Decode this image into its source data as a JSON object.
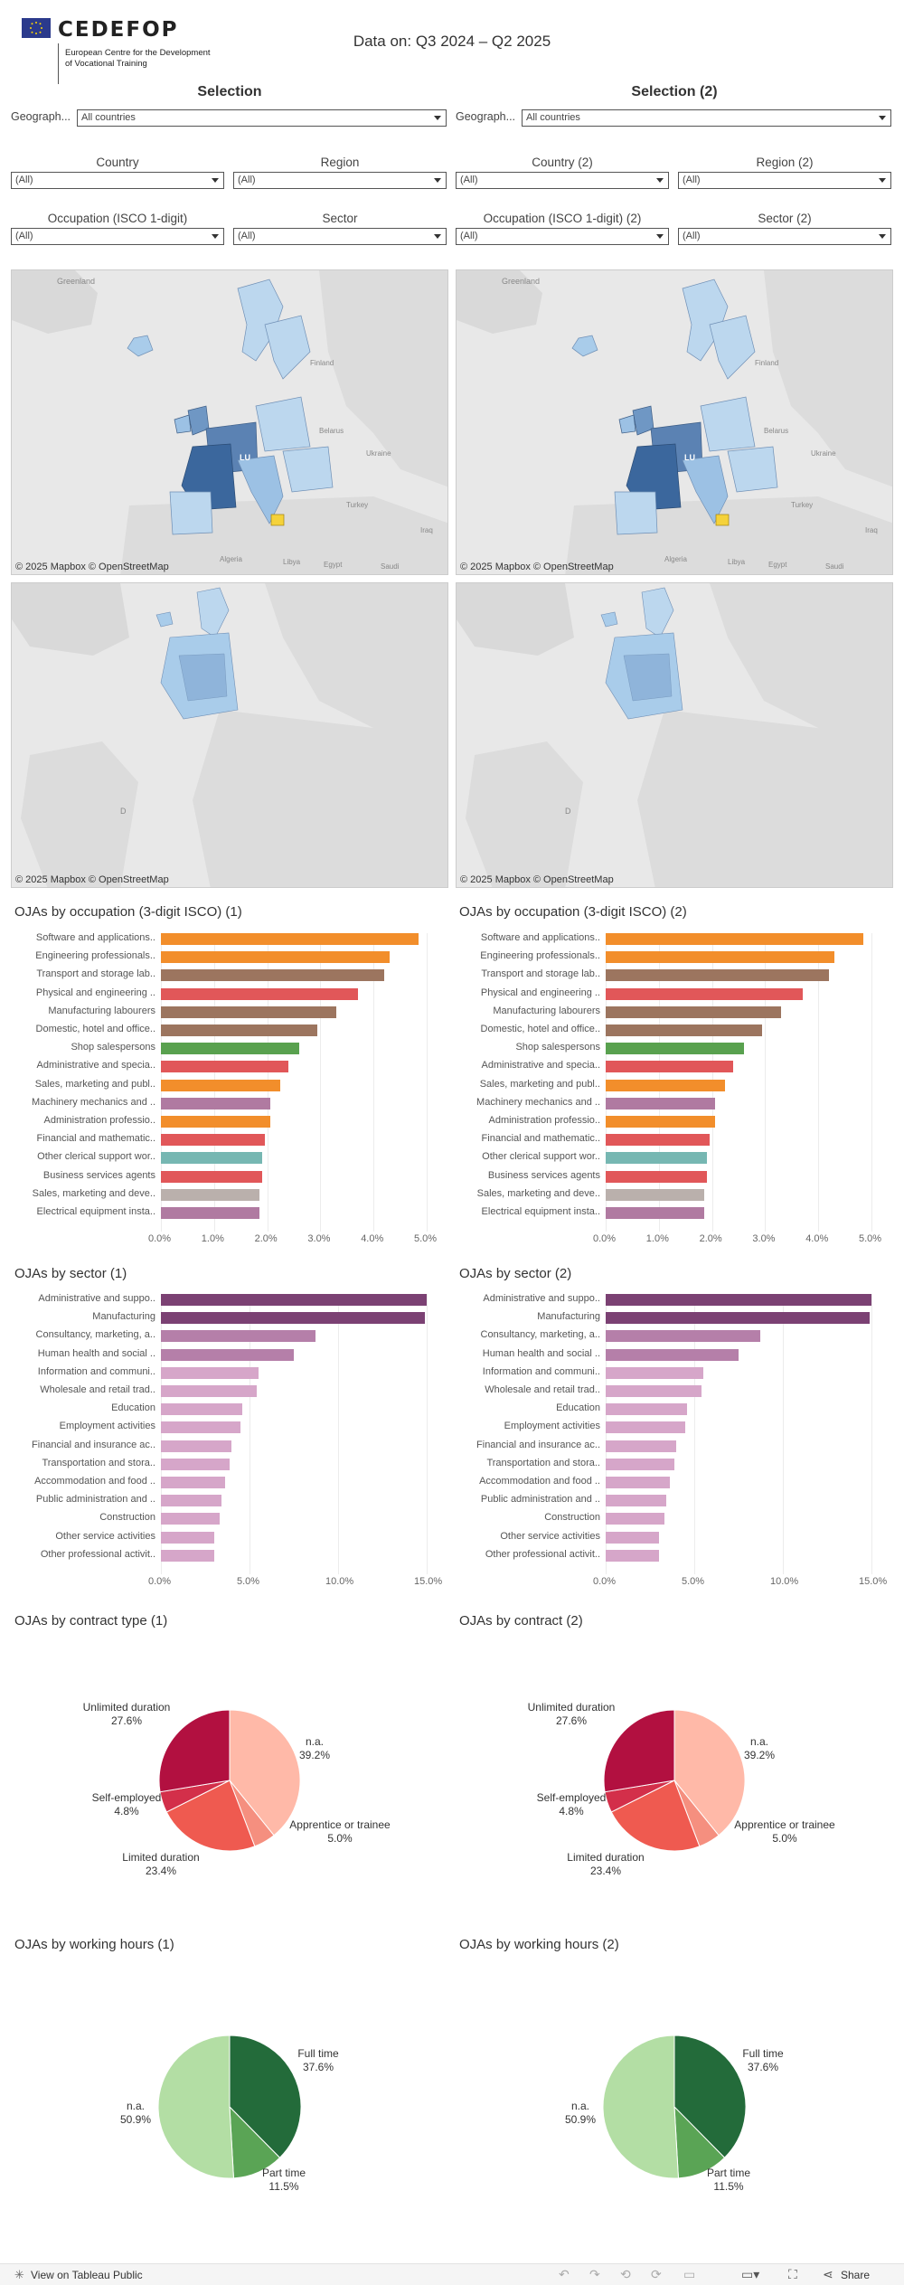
{
  "header": {
    "logo_text": "CEDEFOP",
    "logo_sub_1": "European Centre for the Development",
    "logo_sub_2": "of Vocational Training",
    "data_on": "Data on: Q3 2024 – Q2 2025"
  },
  "panels": [
    {
      "selection_title": "Selection",
      "geo_label": "Geograph...",
      "geo_value": "All countries",
      "country_label": "Country",
      "country_value": "(All)",
      "region_label": "Region",
      "region_value": "(All)",
      "occupation_label": "Occupation (ISCO 1-digit)",
      "occupation_value": "(All)",
      "sector_label": "Sector",
      "sector_value": "(All)",
      "occ_title": "OJAs by occupation (3-digit ISCO) (1)",
      "sector_title": "OJAs by sector (1)",
      "contract_title": "OJAs by contract type (1)",
      "hours_title": "OJAs by working hours (1)"
    },
    {
      "selection_title": "Selection (2)",
      "geo_label": "Geograph...",
      "geo_value": "All countries",
      "country_label": "Country (2)",
      "country_value": "(All)",
      "region_label": "Region (2)",
      "region_value": "(All)",
      "occupation_label": "Occupation (ISCO 1-digit) (2)",
      "occupation_value": "(All)",
      "sector_label": "Sector (2)",
      "sector_value": "(All)",
      "occ_title": "OJAs by occupation (3-digit ISCO) (2)",
      "sector_title": "OJAs by sector (2)",
      "contract_title": "OJAs by contract (2)",
      "hours_title": "OJAs by working hours (2)"
    }
  ],
  "maps": {
    "attribution": "© 2025 Mapbox  © OpenStreetMap",
    "labels": {
      "greenland": "Greenland",
      "finland": "Finland",
      "belarus": "Belarus",
      "ukraine": "Ukraine",
      "turkey": "Turkey",
      "iraq": "Iraq",
      "algeria": "Algeria",
      "libya": "Libya",
      "egypt": "Egypt",
      "saudi": "Saudi",
      "lu": "LU"
    }
  },
  "colors": {
    "orange": "#f28e2b",
    "brown": "#9c755f",
    "red": "#e15759",
    "green": "#59a14f",
    "purple": "#b07aa1",
    "teal": "#76b7b2",
    "grey": "#bab0ac",
    "sector_dark": "#7b4173",
    "sector_mid": "#b57fa9",
    "sector_light": "#d6a6c9"
  },
  "chart_data": [
    {
      "id": "occupation",
      "type": "bar",
      "orientation": "horizontal",
      "categories": [
        "Software and applications..",
        "Engineering professionals..",
        "Transport and storage lab..",
        "Physical and engineering ..",
        "Manufacturing labourers",
        "Domestic, hotel and office..",
        "Shop salespersons",
        "Administrative and specia..",
        "Sales, marketing and publ..",
        "Machinery mechanics and ..",
        "Administration professio..",
        "Financial and mathematic..",
        "Other clerical support wor..",
        "Business services agents",
        "Sales, marketing and deve..",
        "Electrical equipment insta.."
      ],
      "values": [
        4.85,
        4.3,
        4.2,
        3.7,
        3.3,
        2.95,
        2.6,
        2.4,
        2.25,
        2.05,
        2.05,
        1.95,
        1.9,
        1.9,
        1.85,
        1.85
      ],
      "bar_colors": [
        "orange",
        "orange",
        "brown",
        "red",
        "brown",
        "brown",
        "green",
        "red",
        "orange",
        "purple",
        "orange",
        "red",
        "teal",
        "red",
        "grey",
        "purple"
      ],
      "x_ticks": [
        "0.0%",
        "1.0%",
        "2.0%",
        "3.0%",
        "4.0%",
        "5.0%"
      ],
      "xlim": [
        0,
        5
      ]
    },
    {
      "id": "sector",
      "type": "bar",
      "orientation": "horizontal",
      "categories": [
        "Administrative and suppo..",
        "Manufacturing",
        "Consultancy, marketing, a..",
        "Human health and social ..",
        "Information and communi..",
        "Wholesale and retail trad..",
        "Education",
        "Employment activities",
        "Financial and insurance ac..",
        "Transportation and stora..",
        "Accommodation and food ..",
        "Public administration and ..",
        "Construction",
        "Other service activities",
        "Other professional activit.."
      ],
      "values": [
        15.0,
        14.9,
        8.7,
        7.5,
        5.5,
        5.4,
        4.6,
        4.5,
        4.0,
        3.9,
        3.6,
        3.4,
        3.3,
        3.0,
        3.0
      ],
      "bar_colors": [
        "sector_dark",
        "sector_dark",
        "sector_mid",
        "sector_mid",
        "sector_light",
        "sector_light",
        "sector_light",
        "sector_light",
        "sector_light",
        "sector_light",
        "sector_light",
        "sector_light",
        "sector_light",
        "sector_light",
        "sector_light"
      ],
      "x_ticks": [
        "0.0%",
        "5.0%",
        "10.0%",
        "15.0%"
      ],
      "xlim": [
        0,
        15
      ]
    },
    {
      "id": "contract",
      "type": "pie",
      "slices": [
        {
          "label": "n.a.",
          "value": 39.2,
          "display": "39.2%",
          "color": "#ffb9a8"
        },
        {
          "label": "Apprentice or trainee",
          "value": 5.0,
          "display": "5.0%",
          "color": "#f58f7f"
        },
        {
          "label": "Limited duration",
          "value": 23.4,
          "display": "23.4%",
          "color": "#ef5a50"
        },
        {
          "label": "Self-employed",
          "value": 4.8,
          "display": "4.8%",
          "color": "#d32f4a"
        },
        {
          "label": "Unlimited duration",
          "value": 27.6,
          "display": "27.6%",
          "color": "#b21040"
        }
      ]
    },
    {
      "id": "hours",
      "type": "pie",
      "slices": [
        {
          "label": "Full time",
          "value": 37.6,
          "display": "37.6%",
          "color": "#236b3a"
        },
        {
          "label": "Part time",
          "value": 11.5,
          "display": "11.5%",
          "color": "#5aa455"
        },
        {
          "label": "n.a.",
          "value": 50.9,
          "display": "50.9%",
          "color": "#b3dea4"
        }
      ]
    }
  ],
  "footer": {
    "view_label": "View on Tableau Public",
    "share_label": "Share"
  }
}
